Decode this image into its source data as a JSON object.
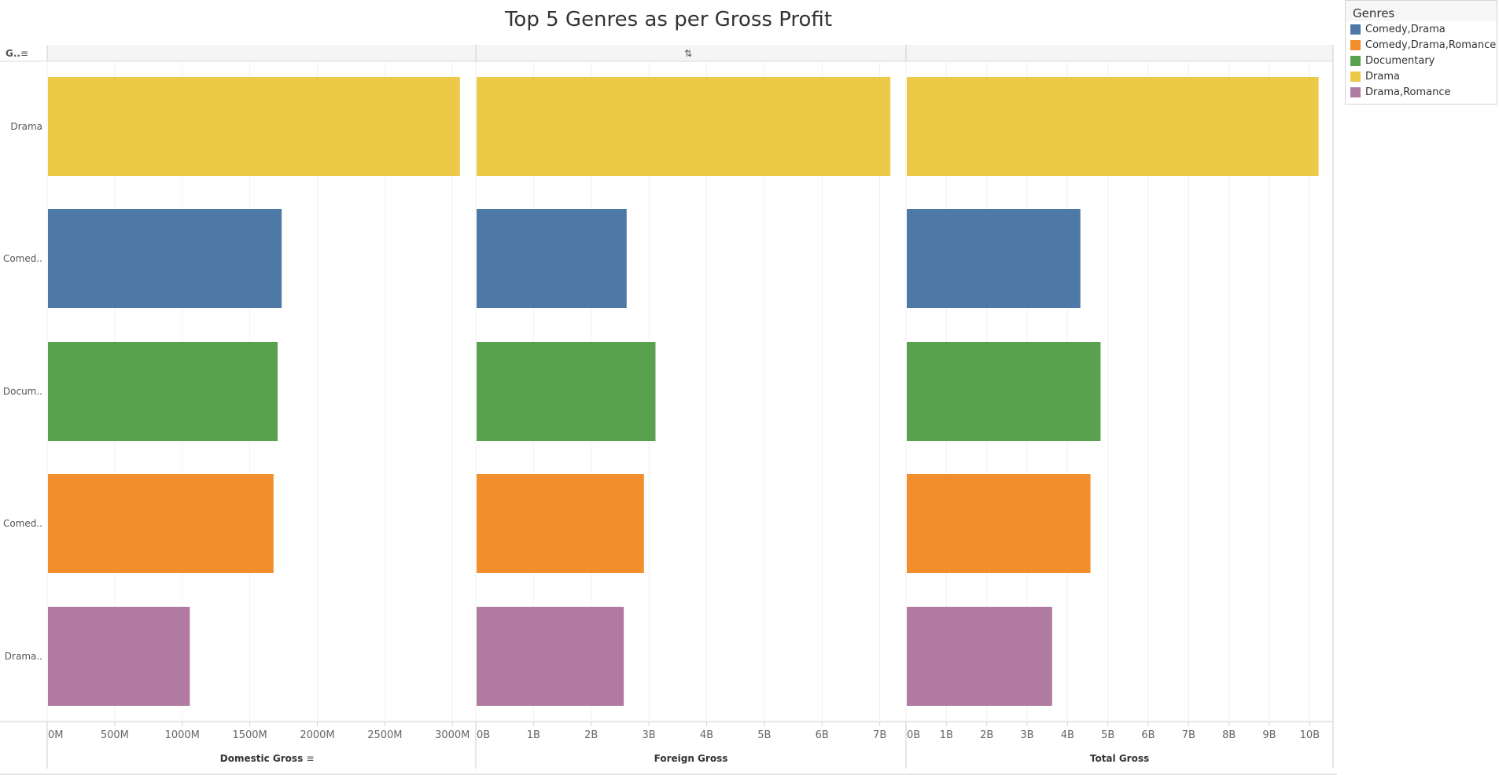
{
  "title": "Top 5 Genres as per Gross Profit",
  "rows_header_label": "G..",
  "legend": {
    "title": "Genres",
    "items": [
      {
        "label": "Comedy,Drama",
        "color": "#4e79a7"
      },
      {
        "label": "Comedy,Drama,Romance",
        "color": "#f28e2b"
      },
      {
        "label": "Documentary",
        "color": "#59a14f"
      },
      {
        "label": "Drama",
        "color": "#edc948"
      },
      {
        "label": "Drama,Romance",
        "color": "#b07aa1"
      }
    ]
  },
  "chart_data": {
    "type": "bar",
    "orientation": "horizontal",
    "categories": [
      "Drama",
      "Comed..",
      "Docum..",
      "Comed..",
      "Drama.."
    ],
    "category_colors": [
      "#edc948",
      "#4e79a7",
      "#59a14f",
      "#f28e2b",
      "#b07aa1"
    ],
    "panels": [
      {
        "name": "Domestic Gross",
        "sorted": true,
        "values": [
          3050,
          1730,
          1700,
          1670,
          1050
        ],
        "xlim": [
          0,
          3150
        ],
        "ticks": [
          0,
          500,
          1000,
          1500,
          2000,
          2500,
          3000
        ],
        "tick_labels": [
          "0M",
          "500M",
          "1000M",
          "1500M",
          "2000M",
          "2500M",
          "3000M"
        ]
      },
      {
        "name": "Foreign Gross",
        "sorted": false,
        "values": [
          7.17,
          2.6,
          3.1,
          2.9,
          2.55
        ],
        "xlim": [
          0,
          7.4
        ],
        "ticks": [
          0,
          1,
          2,
          3,
          4,
          5,
          6,
          7
        ],
        "tick_labels": [
          "0B",
          "1B",
          "2B",
          "3B",
          "4B",
          "5B",
          "6B",
          "7B"
        ]
      },
      {
        "name": "Total Gross",
        "sorted": false,
        "values": [
          10.2,
          4.3,
          4.8,
          4.55,
          3.6
        ],
        "xlim": [
          0,
          10.5
        ],
        "ticks": [
          0,
          1,
          2,
          3,
          4,
          5,
          6,
          7,
          8,
          9,
          10
        ],
        "tick_labels": [
          "0B",
          "1B",
          "2B",
          "3B",
          "4B",
          "5B",
          "6B",
          "7B",
          "8B",
          "9B",
          "10B"
        ]
      }
    ]
  }
}
